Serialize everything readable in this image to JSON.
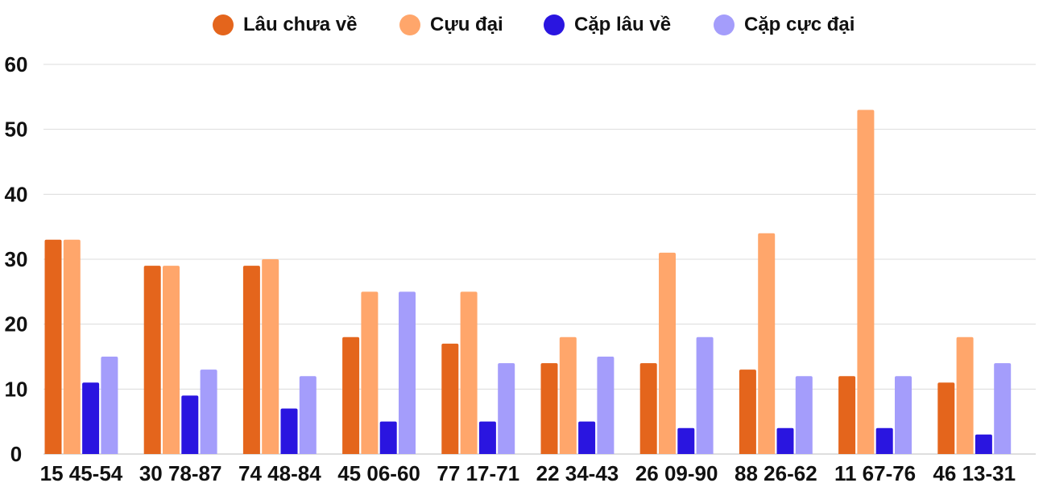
{
  "chart_data": {
    "type": "bar",
    "title": "",
    "xlabel": "",
    "ylabel": "",
    "ylim": [
      0,
      60
    ],
    "yticks": [
      0,
      10,
      20,
      30,
      40,
      50,
      60
    ],
    "grid": true,
    "legend_position": "top-center",
    "categories": [
      "15 45-54",
      "30 78-87",
      "74 48-84",
      "45 06-60",
      "77 17-71",
      "22 34-43",
      "26 09-90",
      "88 26-62",
      "11 67-76",
      "46 13-31"
    ],
    "series": [
      {
        "name": "Lâu chưa về",
        "color": "#e4651c",
        "values": [
          33,
          29,
          29,
          18,
          17,
          14,
          14,
          13,
          12,
          11
        ]
      },
      {
        "name": "Cựu đại",
        "color": "#ffa66b",
        "values": [
          33,
          29,
          30,
          25,
          25,
          18,
          31,
          34,
          53,
          18
        ]
      },
      {
        "name": "Cặp lâu về",
        "color": "#2a15e0",
        "values": [
          11,
          9,
          7,
          5,
          5,
          5,
          4,
          4,
          4,
          3
        ]
      },
      {
        "name": "Cặp cực đại",
        "color": "#a49dfb",
        "values": [
          15,
          13,
          12,
          25,
          14,
          15,
          18,
          12,
          12,
          14
        ]
      }
    ]
  }
}
